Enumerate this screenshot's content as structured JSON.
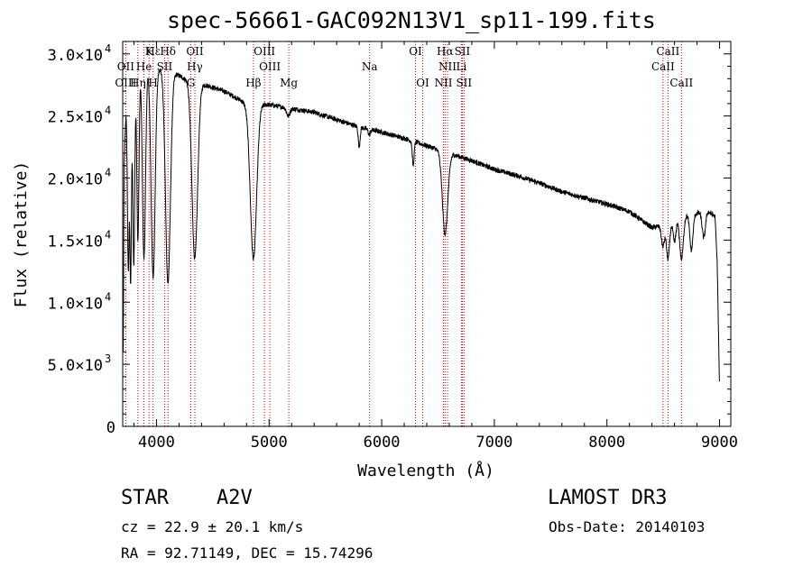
{
  "chart_data": {
    "type": "line",
    "title": "spec-56661-GAC092N13V1_sp11-199.fits",
    "xlabel": "Wavelength (Å)",
    "ylabel": "Flux (relative)",
    "xlim": [
      3700,
      9100
    ],
    "ylim": [
      0,
      31000
    ],
    "x_ticks": [
      4000,
      5000,
      6000,
      7000,
      8000,
      9000
    ],
    "x_tick_labels": [
      "4000",
      "5000",
      "6000",
      "7000",
      "8000",
      "9000"
    ],
    "y_ticks": [
      {
        "value": 0,
        "mantissa": "0",
        "exp": ""
      },
      {
        "value": 5000,
        "mantissa": "5.0×10",
        "exp": "3"
      },
      {
        "value": 10000,
        "mantissa": "1.0×10",
        "exp": "4"
      },
      {
        "value": 15000,
        "mantissa": "1.5×10",
        "exp": "4"
      },
      {
        "value": 20000,
        "mantissa": "2.0×10",
        "exp": "4"
      },
      {
        "value": 25000,
        "mantissa": "2.5×10",
        "exp": "4"
      },
      {
        "value": 30000,
        "mantissa": "3.0×10",
        "exp": "4"
      }
    ],
    "continuum": [
      [
        3705,
        6000
      ],
      [
        3712,
        21000
      ],
      [
        3730,
        25500
      ],
      [
        3780,
        28500
      ],
      [
        3850,
        29500
      ],
      [
        3950,
        29200
      ],
      [
        4050,
        28800
      ],
      [
        4150,
        28500
      ],
      [
        4250,
        28000
      ],
      [
        4400,
        27600
      ],
      [
        4500,
        27300
      ],
      [
        4600,
        27000
      ],
      [
        4700,
        26500
      ],
      [
        4800,
        26000
      ],
      [
        5000,
        25900
      ],
      [
        5200,
        25600
      ],
      [
        5400,
        25300
      ],
      [
        5600,
        24700
      ],
      [
        5800,
        24100
      ],
      [
        6000,
        23700
      ],
      [
        6200,
        23200
      ],
      [
        6400,
        22600
      ],
      [
        6600,
        22000
      ],
      [
        6800,
        21400
      ],
      [
        7000,
        20700
      ],
      [
        7200,
        20200
      ],
      [
        7400,
        19600
      ],
      [
        7600,
        18900
      ],
      [
        7800,
        18400
      ],
      [
        8000,
        17900
      ],
      [
        8200,
        17300
      ],
      [
        8400,
        16000
      ],
      [
        8550,
        16300
      ],
      [
        8700,
        17000
      ],
      [
        8900,
        17300
      ],
      [
        8960,
        16900
      ],
      [
        8980,
        13000
      ],
      [
        9000,
        3000
      ]
    ],
    "absorption": [
      [
        3750,
        12500,
        8
      ],
      [
        3770,
        11500,
        8
      ],
      [
        3798,
        13000,
        9
      ],
      [
        3835,
        15000,
        10
      ],
      [
        3889,
        13500,
        14
      ],
      [
        3970,
        12000,
        18
      ],
      [
        4102,
        11500,
        22
      ],
      [
        4340,
        13500,
        25
      ],
      [
        4861,
        13500,
        28
      ],
      [
        5170,
        25000,
        15
      ],
      [
        5890,
        23500,
        10
      ],
      [
        5800,
        22500,
        8
      ],
      [
        6280,
        21000,
        8
      ],
      [
        6563,
        15500,
        24
      ],
      [
        8498,
        14500,
        14
      ],
      [
        8542,
        13500,
        14
      ],
      [
        8662,
        13500,
        16
      ],
      [
        8600,
        14800,
        12
      ],
      [
        8750,
        14200,
        14
      ],
      [
        8860,
        15200,
        14
      ]
    ],
    "lines": [
      {
        "name": "Hε",
        "wavelength": 3970,
        "row": 0
      },
      {
        "name": "K",
        "wavelength": 3934,
        "row": 0
      },
      {
        "name": "Hδ",
        "wavelength": 4102,
        "row": 0
      },
      {
        "name": "OII",
        "wavelength": 4341,
        "row": 0
      },
      {
        "name": "OIII",
        "wavelength": 4959,
        "row": 0
      },
      {
        "name": "OI",
        "wavelength": 6300,
        "row": 0
      },
      {
        "name": "Hα",
        "wavelength": 6563,
        "row": 0
      },
      {
        "name": "SII",
        "wavelength": 6716,
        "row": 0
      },
      {
        "name": "CaII",
        "wavelength": 8542,
        "row": 0
      },
      {
        "name": "OII",
        "wavelength": 3727,
        "row": 1
      },
      {
        "name": "He",
        "wavelength": 3889,
        "row": 1
      },
      {
        "name": "SII",
        "wavelength": 4072,
        "row": 1
      },
      {
        "name": "Hγ",
        "wavelength": 4340,
        "row": 1
      },
      {
        "name": "OIII",
        "wavelength": 5007,
        "row": 1
      },
      {
        "name": "Na",
        "wavelength": 5893,
        "row": 1
      },
      {
        "name": "NII",
        "wavelength": 6584,
        "row": 1
      },
      {
        "name": "Li",
        "wavelength": 6708,
        "row": 1
      },
      {
        "name": "CaII",
        "wavelength": 8498,
        "row": 1
      },
      {
        "name": "OIII",
        "wavelength": 3727,
        "row": 2
      },
      {
        "name": "Hη",
        "wavelength": 3835,
        "row": 2
      },
      {
        "name": "H",
        "wavelength": 3969,
        "row": 2
      },
      {
        "name": "G",
        "wavelength": 4305,
        "row": 2
      },
      {
        "name": "Hβ",
        "wavelength": 4861,
        "row": 2
      },
      {
        "name": "Mg",
        "wavelength": 5175,
        "row": 2
      },
      {
        "name": "OI",
        "wavelength": 6364,
        "row": 2
      },
      {
        "name": "NII",
        "wavelength": 6548,
        "row": 2
      },
      {
        "name": "SII",
        "wavelength": 6731,
        "row": 2
      },
      {
        "name": "CaII",
        "wavelength": 8662,
        "row": 2
      }
    ]
  },
  "info": {
    "object_class": "STAR",
    "subclass": "A2V",
    "survey": "LAMOST DR3",
    "redshift_line": "cz = 22.9 ± 20.1 km/s",
    "obs_date_line": "Obs-Date: 20140103",
    "coords_line": "RA =  92.71149, DEC =  15.74296"
  }
}
